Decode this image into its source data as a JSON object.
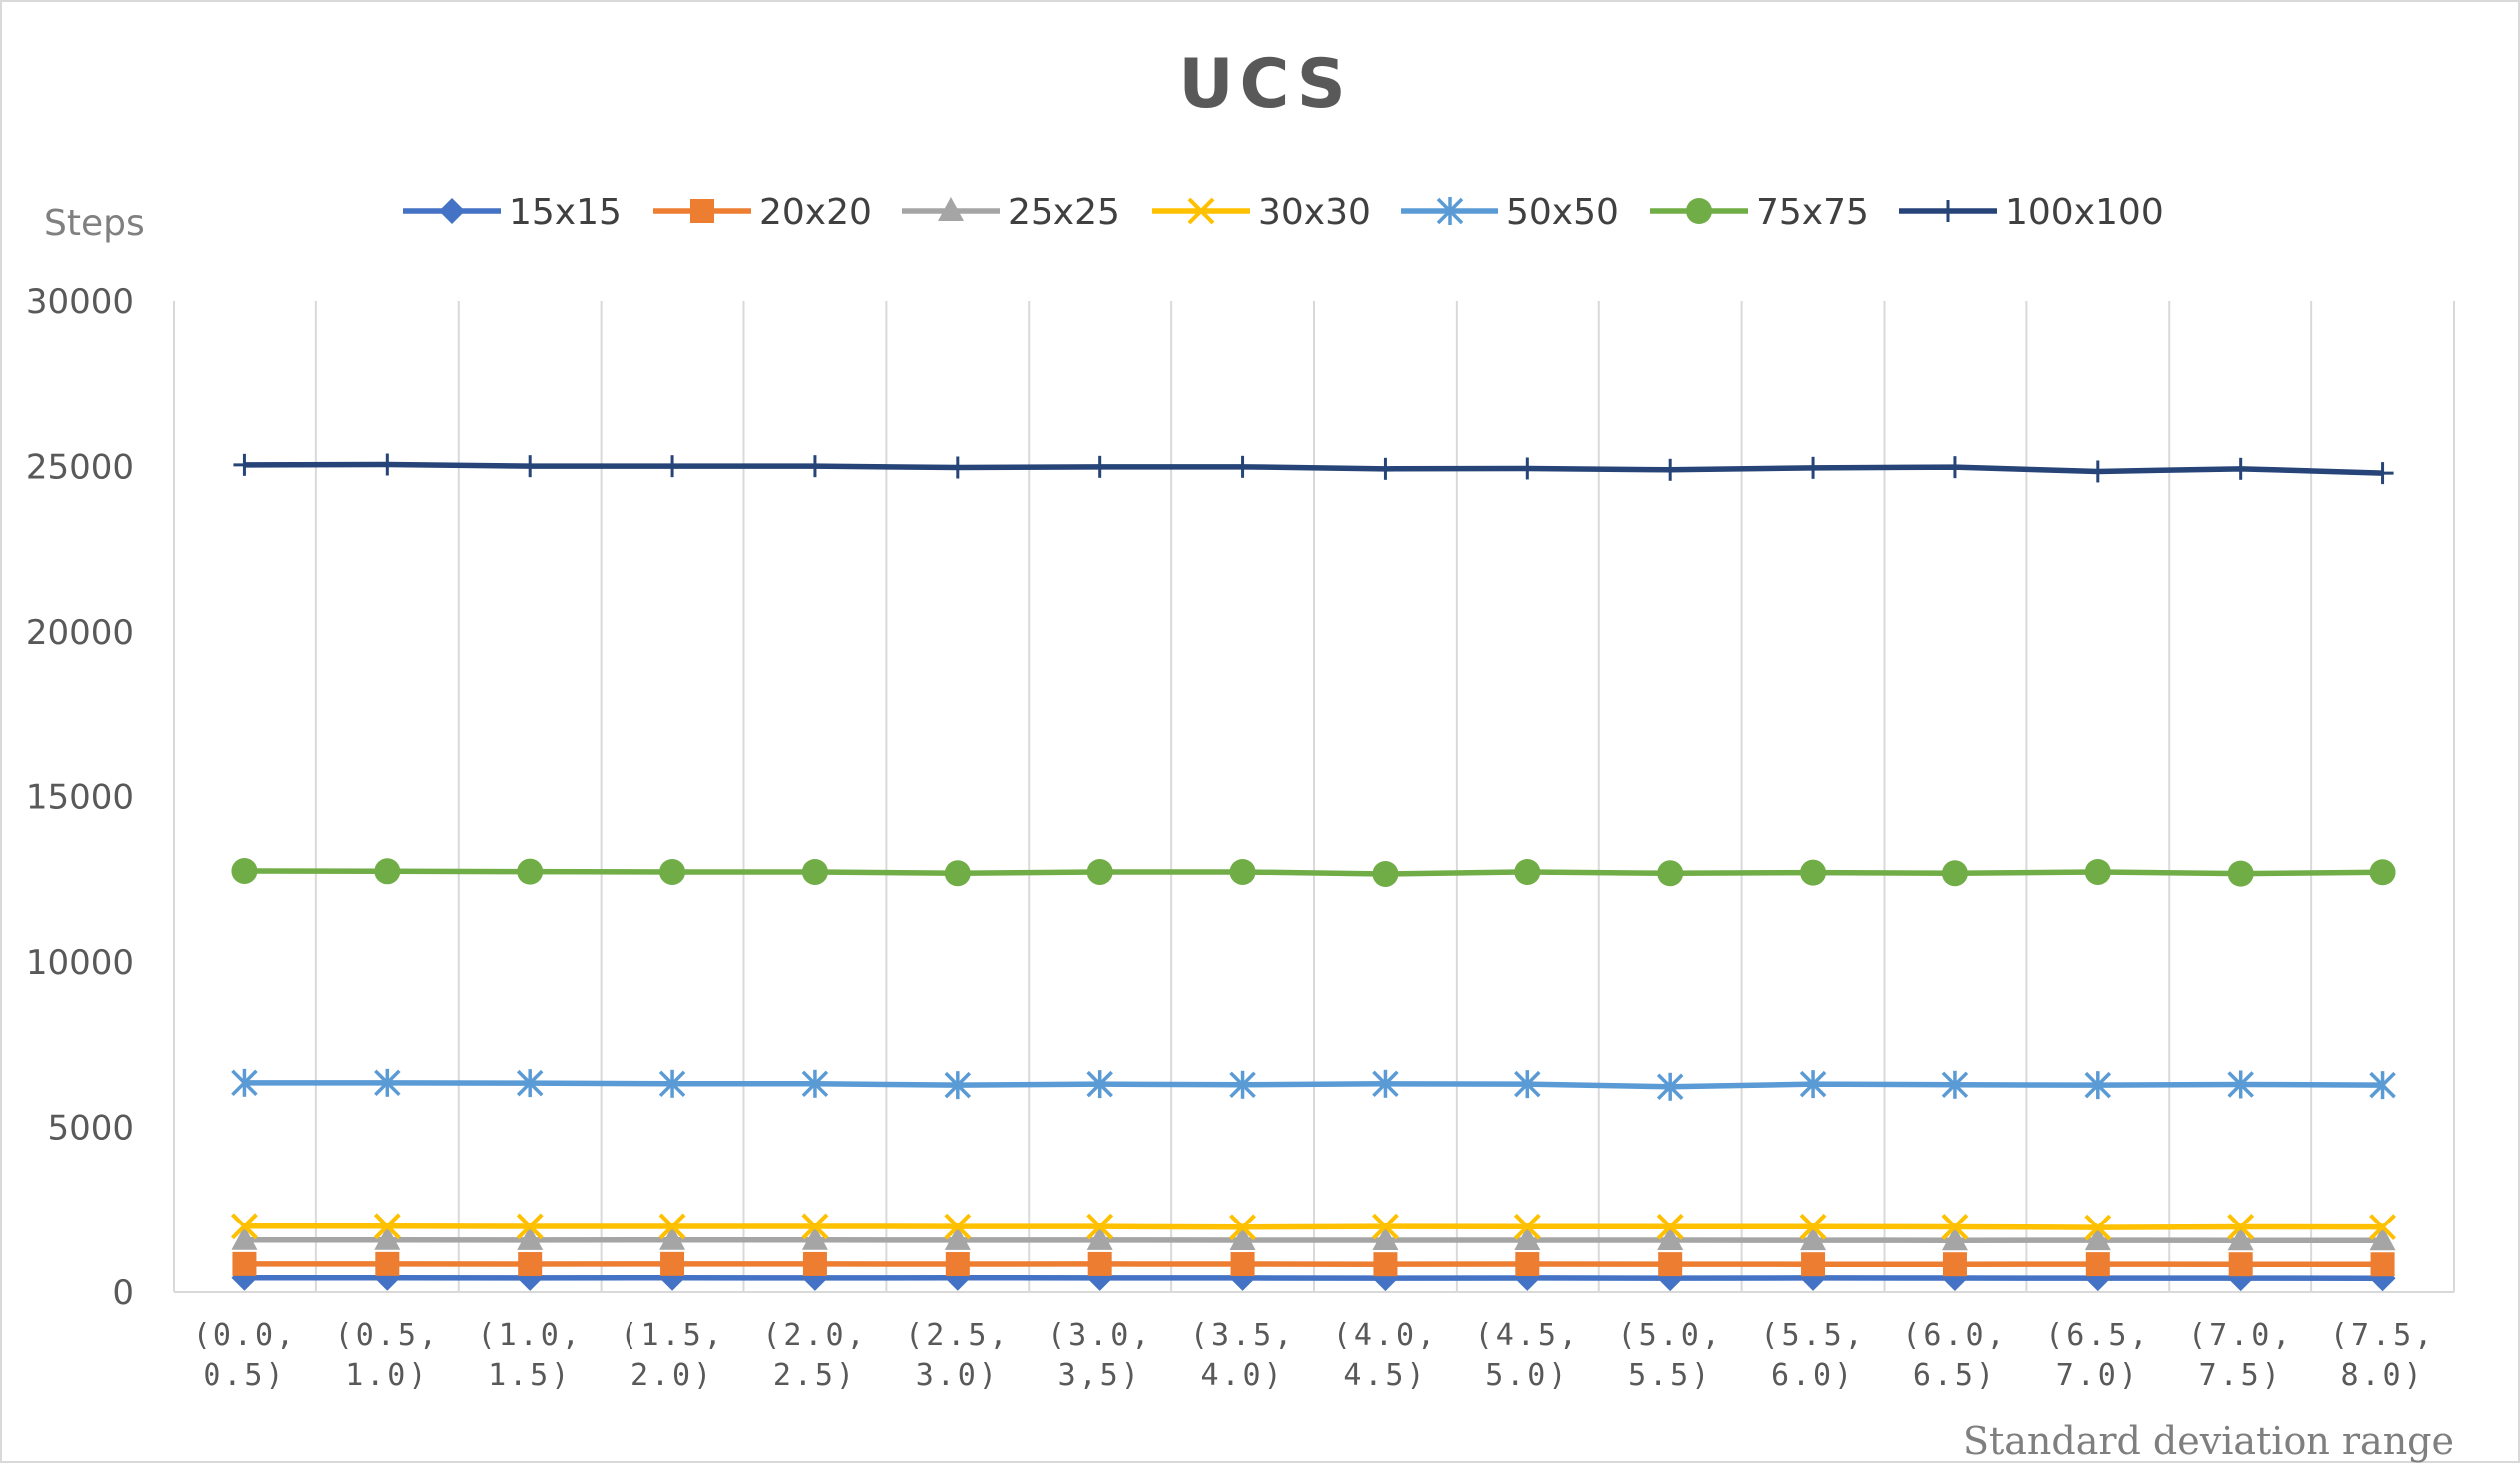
{
  "chart_data": {
    "type": "line",
    "title": "UCS",
    "ylabel": "Steps",
    "xlabel": "Standard deviation range",
    "ylim": [
      0,
      30000
    ],
    "yticks": [
      "0",
      "5000",
      "10000",
      "15000",
      "20000",
      "25000",
      "30000"
    ],
    "categories": [
      [
        "(0.0,",
        "0.5)"
      ],
      [
        "(0.5,",
        "1.0)"
      ],
      [
        "(1.0,",
        "1.5)"
      ],
      [
        "(1.5,",
        "2.0)"
      ],
      [
        "(2.0,",
        "2.5)"
      ],
      [
        "(2.5,",
        "3.0)"
      ],
      [
        "(3.0,",
        "3,5)"
      ],
      [
        "(3.5,",
        "4.0)"
      ],
      [
        "(4.0,",
        "4.5)"
      ],
      [
        "(4.5,",
        "5.0)"
      ],
      [
        "(5.0,",
        "5.5)"
      ],
      [
        "(5.5,",
        "6.0)"
      ],
      [
        "(6.0,",
        "6.5)"
      ],
      [
        "(6.5,",
        "7.0)"
      ],
      [
        "(7.0,",
        "7.5)"
      ],
      [
        "(7.5,",
        "8.0)"
      ]
    ],
    "grid": {
      "vertical": true,
      "horizontal": false
    },
    "legend_position": "top",
    "series": [
      {
        "name": "15x15",
        "color": "#4472c4",
        "marker": "diamond",
        "values": [
          430,
          430,
          425,
          430,
          425,
          430,
          428,
          425,
          420,
          425,
          420,
          425,
          422,
          420,
          420,
          415
        ]
      },
      {
        "name": "20x20",
        "color": "#ed7d31",
        "marker": "square",
        "values": [
          850,
          850,
          845,
          850,
          848,
          845,
          848,
          845,
          840,
          845,
          842,
          840,
          840,
          842,
          840,
          838
        ]
      },
      {
        "name": "25x25",
        "color": "#a5a5a5",
        "marker": "triangle",
        "values": [
          1580,
          1580,
          1575,
          1580,
          1578,
          1575,
          1575,
          1570,
          1570,
          1572,
          1570,
          1568,
          1565,
          1568,
          1565,
          1562
        ]
      },
      {
        "name": "30x30",
        "color": "#ffc000",
        "marker": "x",
        "values": [
          2000,
          2000,
          1995,
          1995,
          1995,
          1990,
          1990,
          1970,
          1990,
          1985,
          1985,
          1985,
          1980,
          1960,
          1980,
          1975
        ]
      },
      {
        "name": "50x50",
        "color": "#5b9bd5",
        "marker": "asterisk",
        "values": [
          6350,
          6350,
          6340,
          6320,
          6320,
          6280,
          6310,
          6290,
          6320,
          6310,
          6230,
          6310,
          6290,
          6280,
          6300,
          6280
        ]
      },
      {
        "name": "75x75",
        "color": "#70ad47",
        "marker": "circle",
        "values": [
          12750,
          12740,
          12730,
          12720,
          12720,
          12680,
          12720,
          12720,
          12660,
          12720,
          12680,
          12700,
          12680,
          12720,
          12670,
          12710
        ]
      },
      {
        "name": "100x100",
        "color": "#264478",
        "marker": "plus",
        "values": [
          25050,
          25060,
          25010,
          25010,
          25010,
          24970,
          24990,
          24990,
          24930,
          24940,
          24900,
          24960,
          24980,
          24850,
          24930,
          24800
        ]
      }
    ]
  }
}
